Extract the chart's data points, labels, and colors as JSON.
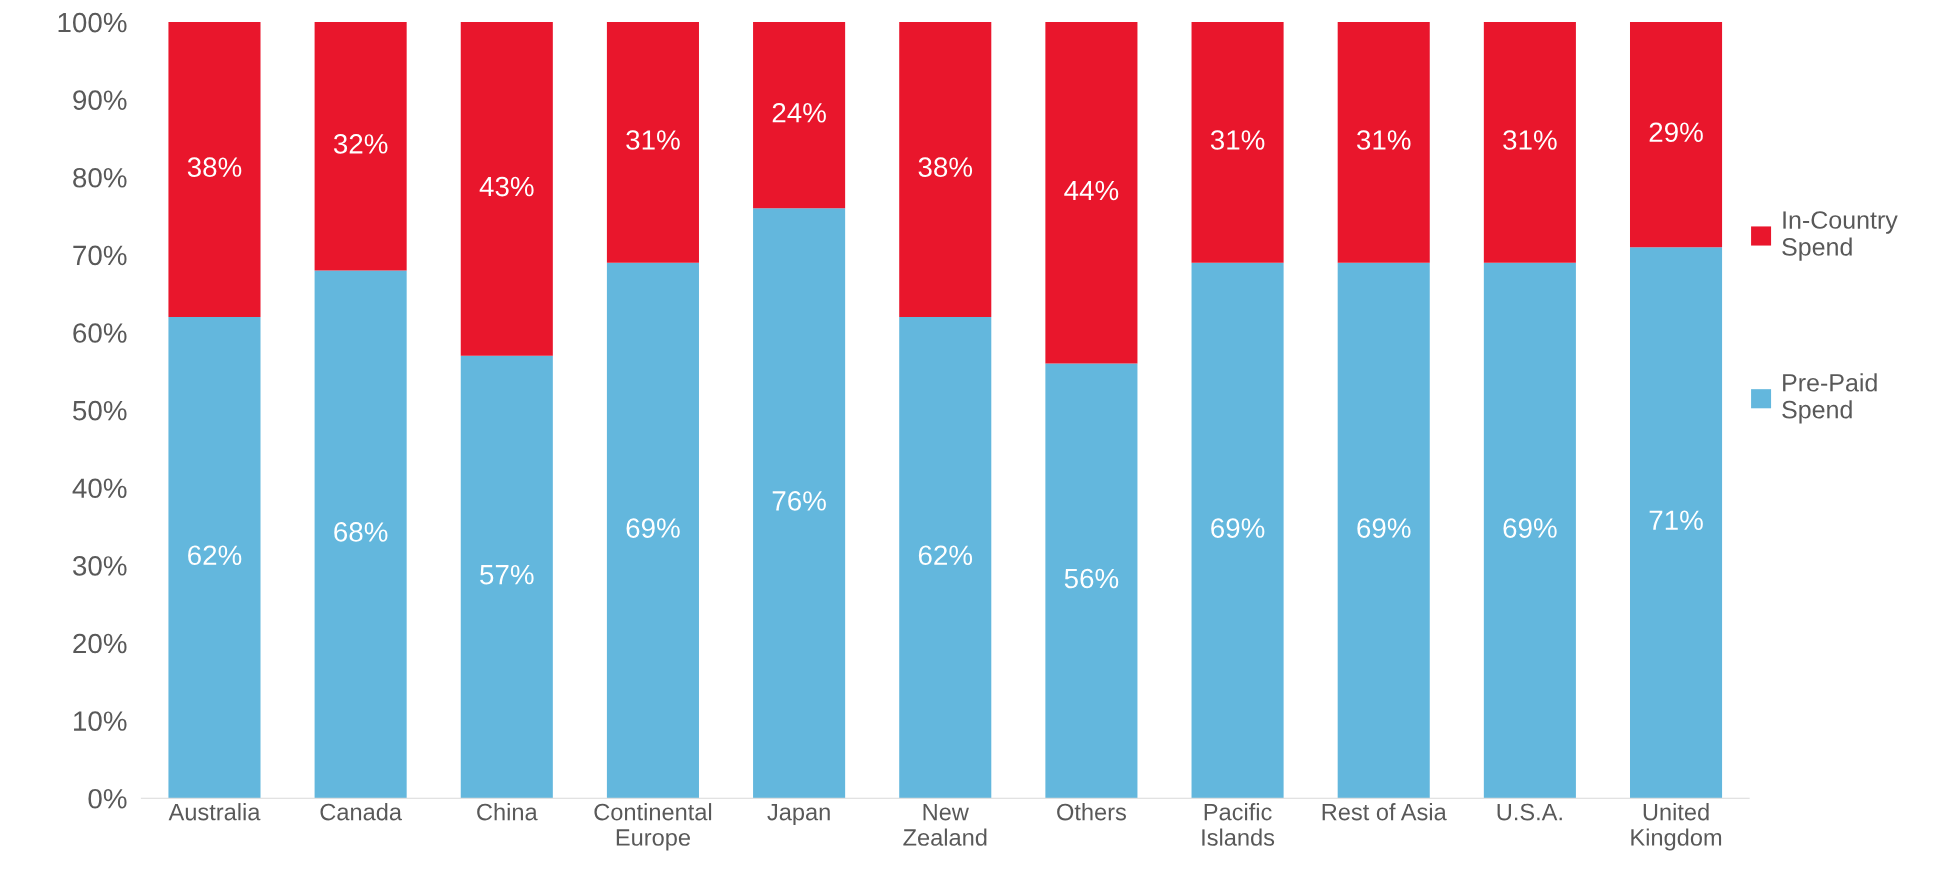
{
  "chart_data": {
    "type": "bar",
    "stacked": true,
    "categories": [
      "Australia",
      "Canada",
      "China",
      "Continental\nEurope",
      "Japan",
      "New\nZealand",
      "Others",
      "Pacific\nIslands",
      "Rest of Asia",
      "U.S.A.",
      "United\nKingdom"
    ],
    "series": [
      {
        "name": "Pre-Paid\nSpend",
        "color": "#63b7dd",
        "values": [
          62,
          68,
          57,
          69,
          76,
          62,
          56,
          69,
          69,
          69,
          71
        ],
        "value_labels": [
          "62%",
          "68%",
          "57%",
          "69%",
          "76%",
          "62%",
          "56%",
          "69%",
          "69%",
          "69%",
          "71%"
        ]
      },
      {
        "name": "In-Country\nSpend",
        "color": "#e9162c",
        "values": [
          38,
          32,
          43,
          31,
          24,
          38,
          44,
          31,
          31,
          31,
          29
        ],
        "value_labels": [
          "38%",
          "32%",
          "43%",
          "31%",
          "24%",
          "38%",
          "44%",
          "31%",
          "31%",
          "31%",
          "29%"
        ]
      }
    ],
    "ylim": [
      0,
      100
    ],
    "yticks": [
      {
        "value": 0,
        "label": "0%"
      },
      {
        "value": 10,
        "label": "10%"
      },
      {
        "value": 20,
        "label": "20%"
      },
      {
        "value": 30,
        "label": "30%"
      },
      {
        "value": 40,
        "label": "40%"
      },
      {
        "value": 50,
        "label": "50%"
      },
      {
        "value": 60,
        "label": "60%"
      },
      {
        "value": 70,
        "label": "70%"
      },
      {
        "value": 80,
        "label": "80%"
      },
      {
        "value": 90,
        "label": "90%"
      },
      {
        "value": 100,
        "label": "100%"
      }
    ],
    "grid": false,
    "legend": "right"
  }
}
